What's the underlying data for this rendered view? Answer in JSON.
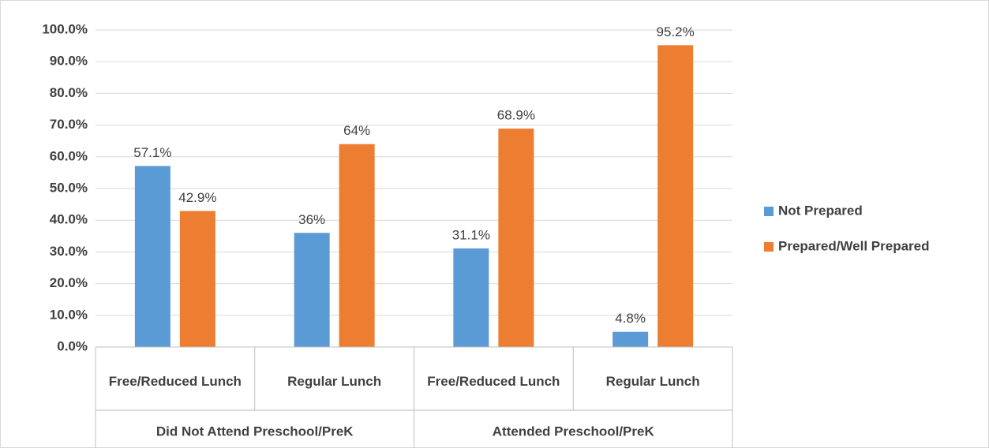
{
  "chart_data": {
    "type": "bar",
    "categories": [
      "Free/Reduced Lunch",
      "Regular Lunch",
      "Free/Reduced Lunch",
      "Regular Lunch"
    ],
    "groups": [
      "Did Not Attend Preschool/PreK",
      "Attended Preschool/PreK"
    ],
    "series": [
      {
        "name": "Not Prepared",
        "color": "#5b9bd5",
        "values": [
          57.1,
          36,
          31.1,
          4.8
        ],
        "value_labels": [
          "57.1%",
          "36%",
          "31.1%",
          "4.8%"
        ]
      },
      {
        "name": "Prepared/Well Prepared",
        "color": "#ed7d31",
        "values": [
          42.9,
          64,
          68.9,
          95.2
        ],
        "value_labels": [
          "42.9%",
          "64%",
          "68.9%",
          "95.2%"
        ]
      }
    ],
    "ylim": [
      0,
      100
    ],
    "yticks": [
      {
        "value": 0,
        "label": "0.0%"
      },
      {
        "value": 10,
        "label": "10.0%"
      },
      {
        "value": 20,
        "label": "20.0%"
      },
      {
        "value": 30,
        "label": "30.0%"
      },
      {
        "value": 40,
        "label": "40.0%"
      },
      {
        "value": 50,
        "label": "50.0%"
      },
      {
        "value": 60,
        "label": "60.0%"
      },
      {
        "value": 70,
        "label": "70.0%"
      },
      {
        "value": 80,
        "label": "80.0%"
      },
      {
        "value": 90,
        "label": "90.0%"
      },
      {
        "value": 100,
        "label": "100.0%"
      }
    ],
    "grid": true,
    "legend": "right"
  }
}
